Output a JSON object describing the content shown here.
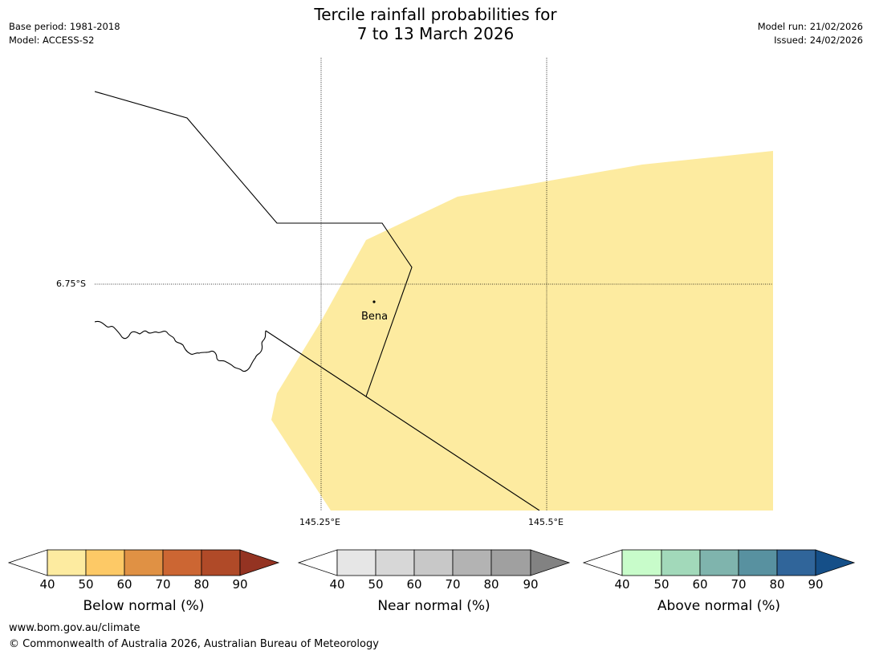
{
  "header": {
    "title_line1": "Tercile rainfall probabilities for",
    "title_line2": "7 to 13 March 2026",
    "base_period": "Base period: 1981-2018",
    "model": "Model: ACCESS-S2",
    "model_run": "Model run: 21/02/2026",
    "issued": "Issued: 24/02/2026"
  },
  "map": {
    "lat_label": "6.75°S",
    "lon_labels": [
      "145.25°E",
      "145.5°E"
    ],
    "place": {
      "name": "Bena",
      "kind": "town"
    },
    "shaded_category": "Below normal",
    "shaded_bin": "40–50",
    "shade_color": "#fdeba0"
  },
  "colorbars": [
    {
      "label": "Below normal (%)",
      "ticks": [
        "40",
        "50",
        "60",
        "70",
        "80",
        "90"
      ],
      "colors": [
        "#fdeba0",
        "#fdc966",
        "#e09144",
        "#cc6633",
        "#b04a28",
        "#943322"
      ]
    },
    {
      "label": "Near normal (%)",
      "ticks": [
        "40",
        "50",
        "60",
        "70",
        "80",
        "90"
      ],
      "colors": [
        "#e6e6e6",
        "#d7d7d7",
        "#c8c8c8",
        "#b3b3b3",
        "#a0a0a0",
        "#828282"
      ]
    },
    {
      "label": "Above normal (%)",
      "ticks": [
        "40",
        "50",
        "60",
        "70",
        "80",
        "90"
      ],
      "colors": [
        "#c8fcca",
        "#a2d9ba",
        "#7fb4ad",
        "#5891a0",
        "#30659a",
        "#154f88"
      ]
    }
  ],
  "footer": {
    "url": "www.bom.gov.au/climate",
    "copyright": "© Commonwealth of Australia 2026, Australian Bureau of Meteorology"
  }
}
